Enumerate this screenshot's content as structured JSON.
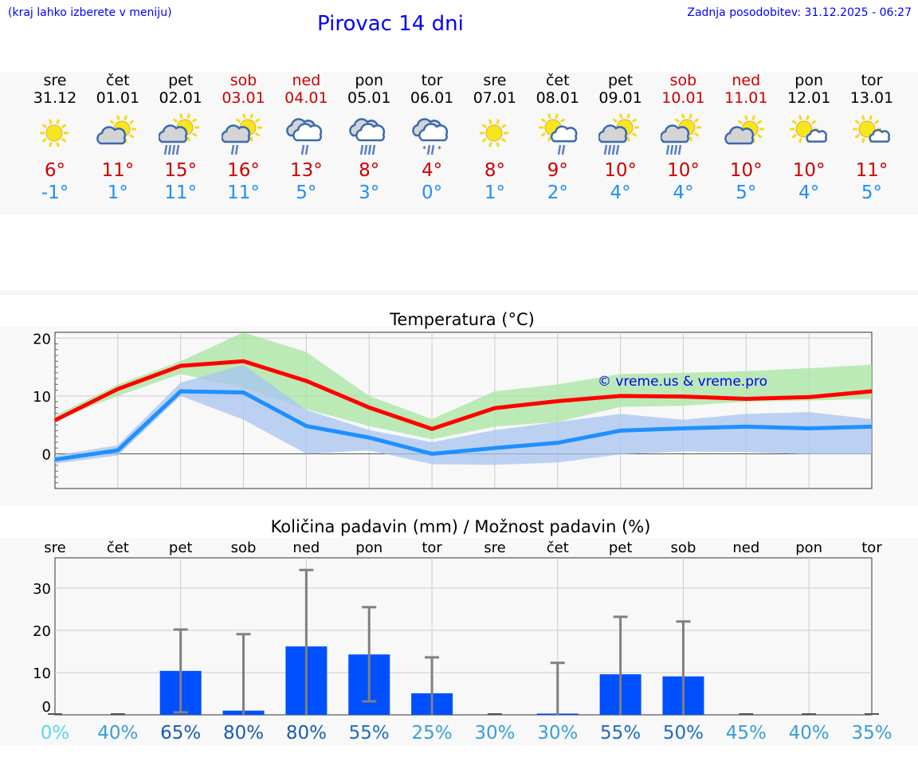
{
  "header": {
    "hint": "(kraj lahko izberete v meniju)",
    "title": "Pirovac 14 dni",
    "updated": "Zadnja posodobitev: 31.12.2025 - 06:27"
  },
  "days": [
    {
      "name": "sre",
      "date": "31.12",
      "weekend": false,
      "icon": "sun",
      "max": "6°",
      "min": "-1°"
    },
    {
      "name": "čet",
      "date": "01.01",
      "weekend": false,
      "icon": "sun-cloud",
      "max": "11°",
      "min": "1°"
    },
    {
      "name": "pet",
      "date": "02.01",
      "weekend": false,
      "icon": "sun-cloud-rain",
      "max": "15°",
      "min": "11°"
    },
    {
      "name": "sob",
      "date": "03.01",
      "weekend": true,
      "icon": "sun-cloud-light-rain",
      "max": "16°",
      "min": "11°"
    },
    {
      "name": "ned",
      "date": "04.01",
      "weekend": true,
      "icon": "cloud-light-rain",
      "max": "13°",
      "min": "5°"
    },
    {
      "name": "pon",
      "date": "05.01",
      "weekend": false,
      "icon": "cloud-rain",
      "max": "8°",
      "min": "3°"
    },
    {
      "name": "tor",
      "date": "06.01",
      "weekend": false,
      "icon": "cloud-sleet",
      "max": "4°",
      "min": "0°"
    },
    {
      "name": "sre",
      "date": "07.01",
      "weekend": false,
      "icon": "sun",
      "max": "8°",
      "min": "1°"
    },
    {
      "name": "čet",
      "date": "08.01",
      "weekend": false,
      "icon": "sun-small-cloud-rain",
      "max": "9°",
      "min": "2°"
    },
    {
      "name": "pet",
      "date": "09.01",
      "weekend": false,
      "icon": "sun-cloud-rain",
      "max": "10°",
      "min": "4°"
    },
    {
      "name": "sob",
      "date": "10.01",
      "weekend": true,
      "icon": "sun-cloud-rain",
      "max": "10°",
      "min": "4°"
    },
    {
      "name": "ned",
      "date": "11.01",
      "weekend": true,
      "icon": "sun-cloud",
      "max": "10°",
      "min": "5°"
    },
    {
      "name": "pon",
      "date": "12.01",
      "weekend": false,
      "icon": "sun-small-cloud",
      "max": "10°",
      "min": "4°"
    },
    {
      "name": "tor",
      "date": "13.01",
      "weekend": false,
      "icon": "sun-small-cloud",
      "max": "11°",
      "min": "5°"
    }
  ],
  "colors": {
    "max": "#ff0000",
    "min": "#1e90ff",
    "max_band": "#a8e6a0",
    "min_band": "#a8c4f0",
    "bar": "#0050ff",
    "error": "#808080"
  },
  "chart_data": [
    {
      "type": "line",
      "title": "Temperatura (°C)",
      "watermark": "© vreme.us & vreme.pro",
      "ylim": [
        -6,
        21
      ],
      "yticks": [
        0,
        10,
        20
      ],
      "yticklabels": [
        "0",
        "10",
        "20"
      ],
      "x": [
        "31.12",
        "01.01",
        "02.01",
        "03.01",
        "04.01",
        "05.01",
        "06.01",
        "07.01",
        "08.01",
        "09.01",
        "10.01",
        "11.01",
        "12.01",
        "13.01"
      ],
      "series": [
        {
          "name": "max",
          "values": [
            5.8,
            11.2,
            15.2,
            16,
            12.6,
            8,
            4.3,
            7.9,
            9.1,
            10,
            9.9,
            9.5,
            9.8,
            10.8
          ]
        },
        {
          "name": "min",
          "values": [
            -1,
            0.6,
            10.8,
            10.6,
            4.8,
            2.8,
            0,
            1,
            1.9,
            4,
            4.4,
            4.7,
            4.4,
            4.7
          ]
        },
        {
          "name": "max_range_upper",
          "values": [
            6.6,
            12,
            16,
            21,
            17.6,
            10,
            6,
            10.8,
            12,
            13.8,
            14,
            14.3,
            14.8,
            15.4
          ]
        },
        {
          "name": "max_range_lower",
          "values": [
            5.8,
            10,
            13.8,
            11.4,
            7.7,
            4.8,
            2.5,
            4.7,
            5.5,
            8.1,
            8.3,
            9,
            9.2,
            9.5
          ]
        },
        {
          "name": "min_range_upper",
          "values": [
            -0.3,
            1.5,
            12.3,
            15.4,
            7.6,
            4.1,
            2,
            4.1,
            5.5,
            6.9,
            5.9,
            6.9,
            7.2,
            6
          ]
        },
        {
          "name": "min_range_lower",
          "values": [
            -1.7,
            -0.3,
            10,
            5.9,
            0,
            0.6,
            -1.8,
            -1.9,
            -1.5,
            -0.1,
            0.4,
            0.3,
            -0.1,
            -0.1
          ]
        }
      ]
    },
    {
      "type": "bar",
      "title": "Količina padavin (mm) / Možnost padavin (%)",
      "ylim": [
        0,
        37
      ],
      "yticks": [
        0,
        10,
        20,
        30
      ],
      "yticklabels": [
        "0",
        "10",
        "20",
        "30"
      ],
      "categories": [
        "sre",
        "čet",
        "pet",
        "sob",
        "ned",
        "pon",
        "tor",
        "sre",
        "čet",
        "pet",
        "sob",
        "ned",
        "pon",
        "tor"
      ],
      "values": [
        0,
        0,
        10.4,
        1,
        16.2,
        14.3,
        5.1,
        0,
        0.3,
        9.6,
        9.1,
        0,
        0,
        0
      ],
      "err_low": [
        0,
        0,
        0.6,
        0,
        0,
        3.2,
        0,
        0,
        0,
        0,
        0,
        0,
        0,
        0
      ],
      "err_high": [
        0,
        0,
        20.2,
        19.1,
        34.3,
        25.5,
        13.6,
        0,
        12.3,
        23.2,
        22.1,
        0,
        0,
        0
      ],
      "probability": [
        "0%",
        "40%",
        "65%",
        "80%",
        "80%",
        "55%",
        "25%",
        "30%",
        "30%",
        "55%",
        "50%",
        "45%",
        "40%",
        "35%"
      ],
      "probability_values": [
        0,
        40,
        65,
        80,
        80,
        55,
        25,
        30,
        30,
        55,
        50,
        45,
        40,
        35
      ]
    }
  ]
}
